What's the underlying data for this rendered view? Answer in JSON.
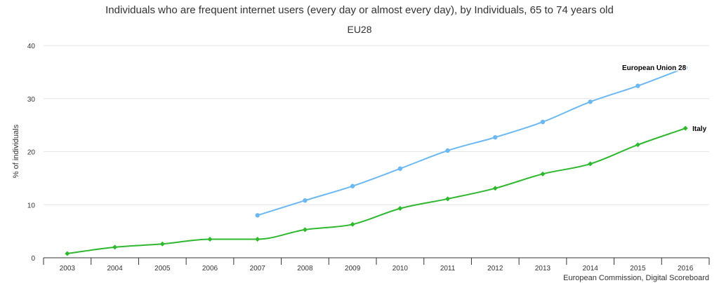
{
  "chart_data": {
    "type": "line",
    "title": "Individuals who are frequent internet users (every day or almost every day), by Individuals, 65 to 74 years old",
    "subtitle": "EU28",
    "ylabel": "% of individuals",
    "xlabel": "",
    "ylim": [
      0,
      40
    ],
    "yticks": [
      "0",
      "10",
      "20",
      "30",
      "40"
    ],
    "categories": [
      "2003",
      "2004",
      "2005",
      "2006",
      "2007",
      "2008",
      "2009",
      "2010",
      "2011",
      "2012",
      "2013",
      "2014",
      "2015",
      "2016"
    ],
    "grid": true,
    "legend": "labels at line ends",
    "series": [
      {
        "name": "European Union 28",
        "color": "#6cb8f2",
        "marker": "circle",
        "values": [
          null,
          null,
          null,
          null,
          8.0,
          10.8,
          13.5,
          16.8,
          20.2,
          22.7,
          25.6,
          29.4,
          32.4,
          35.8
        ]
      },
      {
        "name": "Italy",
        "color": "#2eb82e",
        "marker": "diamond",
        "values": [
          0.8,
          2.0,
          2.6,
          3.5,
          3.5,
          5.3,
          6.3,
          9.3,
          11.1,
          13.1,
          15.8,
          17.7,
          21.3,
          24.4
        ]
      }
    ]
  },
  "credit": "European Commission, Digital Scoreboard"
}
